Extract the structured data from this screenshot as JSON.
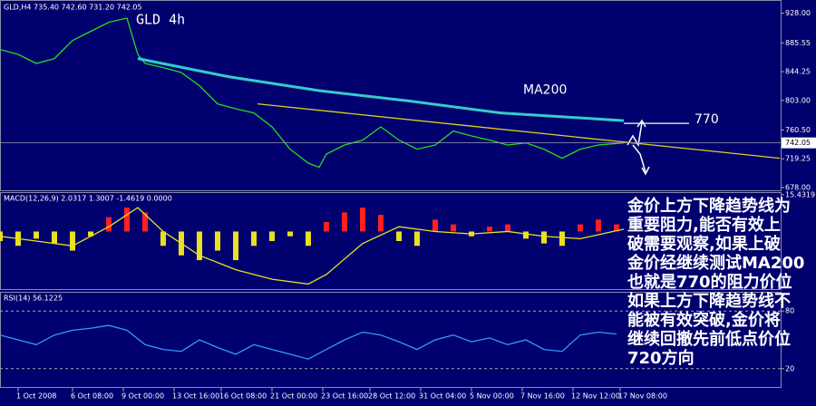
{
  "chart_data": [
    {
      "type": "line",
      "header": "GLD,H4  735.40 742.60 731.20 742.05",
      "title": "GLD 4h",
      "xlim": [
        0,
        215
      ],
      "ylim": [
        674,
        947
      ],
      "xticks": [
        {
          "value": 5,
          "label": "1 Oct 2008"
        },
        {
          "value": 20,
          "label": "6 Oct 08:00"
        },
        {
          "value": 34,
          "label": "9 Oct 00:00"
        },
        {
          "value": 48,
          "label": "13 Oct 16:00"
        },
        {
          "value": 61,
          "label": "16 Oct 08:00"
        },
        {
          "value": 75,
          "label": "21 Oct 00:00"
        },
        {
          "value": 89,
          "label": "23 Oct 16:00"
        },
        {
          "value": 102,
          "label": "28 Oct 12:00"
        },
        {
          "value": 116,
          "label": "31 Oct 04:00"
        },
        {
          "value": 130,
          "label": "5 Nov 00:00"
        },
        {
          "value": 144,
          "label": "7 Nov 16:00"
        },
        {
          "value": 158,
          "label": "12 Nov 12:00"
        },
        {
          "value": 171,
          "label": "17 Nov 08:00"
        }
      ],
      "yticks": [
        {
          "value": 928,
          "label": "928.00"
        },
        885.55,
        844.25,
        {
          "value": 803,
          "label": "803.00"
        },
        {
          "value": 760.5,
          "label": "760.50"
        },
        719.25,
        {
          "value": 678,
          "label": "678.00"
        }
      ],
      "last": 742.05,
      "series": [
        {
          "color": "#22dd22",
          "x": [
            0,
            5,
            10,
            15,
            20,
            25,
            30,
            35,
            38,
            40,
            45,
            50,
            55,
            60,
            65,
            70,
            75,
            80,
            85,
            88,
            90,
            95,
            100,
            105,
            110,
            115,
            120,
            125,
            130,
            135,
            140,
            145,
            150,
            155,
            160,
            165,
            172
          ],
          "values": [
            876,
            869,
            856,
            863,
            889,
            902,
            915,
            921,
            869,
            856,
            850,
            843,
            824,
            798,
            791,
            785,
            765,
            733,
            713,
            707,
            726,
            739,
            746,
            765,
            746,
            733,
            739,
            759,
            752,
            746,
            739,
            742,
            733,
            720,
            733,
            739,
            742
          ]
        },
        {
          "name": "MA200",
          "color": "#33cccc",
          "x": [
            38,
            63,
            88,
            113,
            138,
            172
          ],
          "values": [
            863,
            837,
            817,
            802,
            785,
            774
          ]
        },
        {
          "color": "#e0d020",
          "x": [
            71,
            215
          ],
          "values": [
            798,
            720
          ]
        },
        {
          "name": "770",
          "color": "#ffffff",
          "x": [
            172,
            190
          ],
          "values": [
            770,
            770
          ]
        }
      ],
      "annotation_lines": [
        "金价上方下降趋势线为",
        "重要阻力,能否有效上",
        "破需要观察,如果上破",
        "金价经继续测试MA200",
        "也就是770的阻力价位",
        "如果上方下降趋势线不",
        "能被有效突破,金价将",
        "继续回撤先前低点价位",
        "720方向"
      ]
    },
    {
      "type": "bar",
      "title": "MACD(12,26,9) 2.0317 1.3007 -1.4619 0.0000",
      "xlim": [
        0,
        215
      ],
      "ylim": [
        -24.5,
        16.5
      ],
      "yticks": [
        15.4319
      ],
      "up_color": "#ff2020",
      "down_color": "#e8e020",
      "x": [
        0,
        5,
        10,
        15,
        20,
        25,
        30,
        35,
        40,
        45,
        50,
        55,
        60,
        65,
        70,
        75,
        80,
        85,
        90,
        95,
        100,
        105,
        110,
        115,
        120,
        125,
        130,
        135,
        140,
        145,
        150,
        155,
        160,
        165,
        170
      ],
      "values": [
        -4,
        -6,
        -3,
        -5,
        -8,
        -2,
        6,
        10,
        8,
        -6,
        -10,
        -12,
        -8,
        -12,
        -6,
        -4,
        -2,
        -6,
        4,
        8,
        10,
        7,
        -4,
        -6,
        5,
        3,
        -2,
        2,
        3,
        -3,
        -5,
        -6,
        3,
        5,
        3
      ],
      "series": [
        {
          "color": "#e8e020",
          "x": [
            0,
            10,
            20,
            30,
            38,
            45,
            55,
            65,
            75,
            85,
            90,
            100,
            110,
            120,
            130,
            140,
            150,
            160,
            172
          ],
          "values": [
            -2,
            -4,
            -6,
            2,
            10,
            0,
            -10,
            -16,
            -20,
            -22,
            -18,
            -5,
            2,
            0,
            -1,
            0,
            -2,
            -3,
            1
          ]
        }
      ]
    },
    {
      "type": "line",
      "title": "RSI(14) 56.1225",
      "xlim": [
        0,
        215
      ],
      "ylim": [
        0,
        100
      ],
      "yticks": [
        20,
        80
      ],
      "grid": true,
      "series": [
        {
          "color": "#3399ff",
          "x": [
            0,
            5,
            10,
            15,
            20,
            25,
            30,
            35,
            40,
            45,
            50,
            55,
            60,
            65,
            70,
            75,
            80,
            85,
            90,
            95,
            100,
            105,
            110,
            115,
            120,
            125,
            130,
            135,
            140,
            145,
            150,
            155,
            160,
            165,
            170
          ],
          "values": [
            55,
            50,
            45,
            55,
            60,
            62,
            65,
            60,
            45,
            40,
            38,
            50,
            42,
            35,
            45,
            40,
            35,
            30,
            40,
            50,
            58,
            55,
            48,
            40,
            50,
            55,
            48,
            52,
            45,
            50,
            40,
            38,
            55,
            58,
            56
          ]
        }
      ]
    }
  ]
}
